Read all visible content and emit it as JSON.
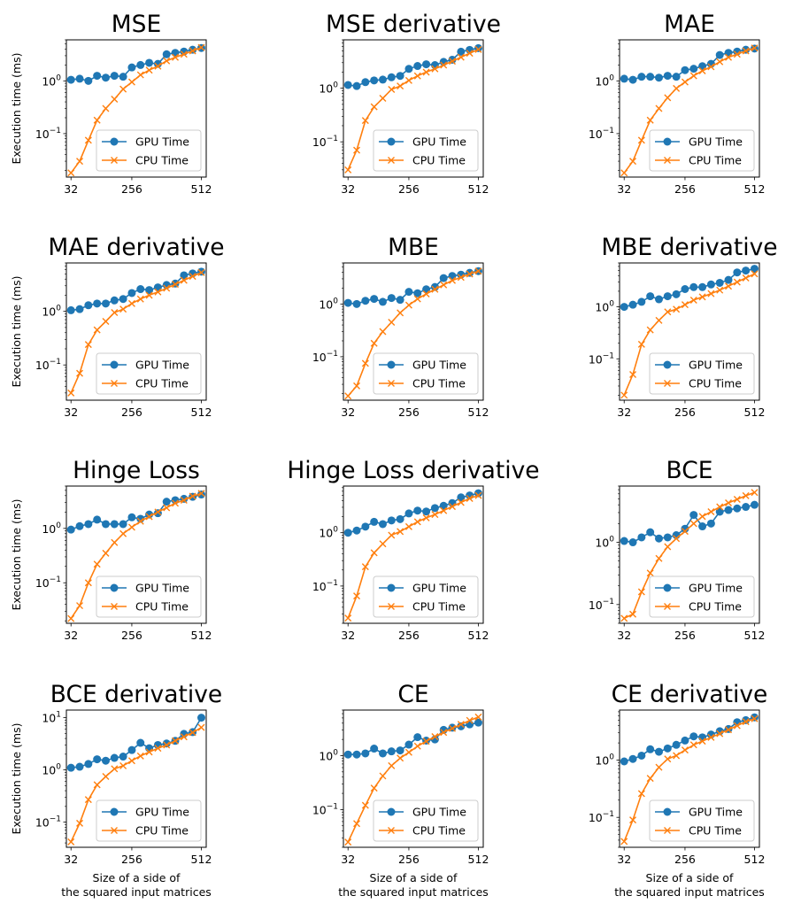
{
  "figure": {
    "ylabel": "Execution time (ms)",
    "xlabel_line1": "Size of a side of",
    "xlabel_line2": "the squared input matrices",
    "x_ticks": [
      32,
      256,
      512
    ],
    "y_tick_labels": {
      "-1": "10^-1",
      "0": "10^0",
      "1": "10^1"
    }
  },
  "colors": {
    "gpu": "#1f77b4",
    "cpu": "#ff7f0e"
  },
  "chart_data": [
    {
      "type": "line",
      "title": "MSE",
      "x": [
        32,
        64,
        96,
        128,
        160,
        192,
        224,
        256,
        288,
        320,
        352,
        384,
        416,
        448,
        480,
        512
      ],
      "yscale": "log",
      "ylim": [
        0.015,
        6
      ],
      "legend": "lower-right",
      "series": [
        {
          "name": "GPU Time",
          "marker": "o",
          "values": [
            1.05,
            1.1,
            1.0,
            1.25,
            1.15,
            1.25,
            1.2,
            1.8,
            2.0,
            2.2,
            2.1,
            3.2,
            3.4,
            3.6,
            3.9,
            4.2
          ]
        },
        {
          "name": "CPU Time",
          "marker": "x",
          "values": [
            0.018,
            0.03,
            0.075,
            0.18,
            0.3,
            0.45,
            0.7,
            0.95,
            1.3,
            1.6,
            1.9,
            2.4,
            2.8,
            3.2,
            3.7,
            4.3
          ]
        }
      ]
    },
    {
      "type": "line",
      "title": "MSE derivative",
      "x": [
        32,
        64,
        96,
        128,
        160,
        192,
        224,
        256,
        288,
        320,
        352,
        384,
        416,
        448,
        480,
        512
      ],
      "yscale": "log",
      "ylim": [
        0.022,
        8
      ],
      "legend": "lower-right",
      "series": [
        {
          "name": "GPU Time",
          "marker": "o",
          "values": [
            1.15,
            1.1,
            1.3,
            1.4,
            1.45,
            1.6,
            1.7,
            2.3,
            2.6,
            2.8,
            2.7,
            3.1,
            3.4,
            4.8,
            5.2,
            5.6
          ]
        },
        {
          "name": "CPU Time",
          "marker": "x",
          "values": [
            0.03,
            0.07,
            0.25,
            0.45,
            0.65,
            0.95,
            1.1,
            1.4,
            1.7,
            2.0,
            2.3,
            2.7,
            3.2,
            3.8,
            4.5,
            5.3
          ]
        }
      ]
    },
    {
      "type": "line",
      "title": "MAE",
      "x": [
        32,
        64,
        96,
        128,
        160,
        192,
        224,
        256,
        288,
        320,
        352,
        384,
        416,
        448,
        480,
        512
      ],
      "yscale": "log",
      "ylim": [
        0.015,
        6
      ],
      "legend": "lower-right",
      "series": [
        {
          "name": "GPU Time",
          "marker": "o",
          "values": [
            1.1,
            1.05,
            1.2,
            1.2,
            1.15,
            1.25,
            1.2,
            1.6,
            1.7,
            1.9,
            2.1,
            3.1,
            3.4,
            3.6,
            3.9,
            4.1
          ]
        },
        {
          "name": "CPU Time",
          "marker": "x",
          "values": [
            0.018,
            0.03,
            0.075,
            0.18,
            0.3,
            0.48,
            0.72,
            0.95,
            1.25,
            1.55,
            1.85,
            2.3,
            2.8,
            3.2,
            3.7,
            4.2
          ]
        }
      ]
    },
    {
      "type": "line",
      "title": "MAE derivative",
      "x": [
        32,
        64,
        96,
        128,
        160,
        192,
        224,
        256,
        288,
        320,
        352,
        384,
        416,
        448,
        480,
        512
      ],
      "yscale": "log",
      "ylim": [
        0.022,
        8
      ],
      "legend": "lower-right",
      "series": [
        {
          "name": "GPU Time",
          "marker": "o",
          "values": [
            1.05,
            1.1,
            1.3,
            1.4,
            1.4,
            1.6,
            1.7,
            2.2,
            2.6,
            2.5,
            2.8,
            3.1,
            3.3,
            4.7,
            5.1,
            5.5
          ]
        },
        {
          "name": "CPU Time",
          "marker": "x",
          "values": [
            0.03,
            0.07,
            0.24,
            0.45,
            0.65,
            0.95,
            1.1,
            1.4,
            1.7,
            2.0,
            2.3,
            2.7,
            3.2,
            3.8,
            4.5,
            5.3
          ]
        }
      ]
    },
    {
      "type": "line",
      "title": "MBE",
      "x": [
        32,
        64,
        96,
        128,
        160,
        192,
        224,
        256,
        288,
        320,
        352,
        384,
        416,
        448,
        480,
        512
      ],
      "yscale": "log",
      "ylim": [
        0.015,
        6
      ],
      "legend": "lower-right",
      "series": [
        {
          "name": "GPU Time",
          "marker": "o",
          "values": [
            1.05,
            1.0,
            1.15,
            1.25,
            1.1,
            1.3,
            1.2,
            1.7,
            1.6,
            1.9,
            2.1,
            3.1,
            3.4,
            3.6,
            3.9,
            4.2
          ]
        },
        {
          "name": "CPU Time",
          "marker": "x",
          "values": [
            0.018,
            0.028,
            0.075,
            0.18,
            0.3,
            0.45,
            0.68,
            0.95,
            1.25,
            1.55,
            1.9,
            2.3,
            2.8,
            3.2,
            3.7,
            4.2
          ]
        }
      ]
    },
    {
      "type": "line",
      "title": "MBE derivative",
      "x": [
        32,
        64,
        96,
        128,
        160,
        192,
        224,
        256,
        288,
        320,
        352,
        384,
        416,
        448,
        480,
        512
      ],
      "yscale": "log",
      "ylim": [
        0.016,
        7
      ],
      "legend": "lower-right",
      "series": [
        {
          "name": "GPU Time",
          "marker": "o",
          "values": [
            1.0,
            1.1,
            1.25,
            1.6,
            1.4,
            1.6,
            1.75,
            2.2,
            2.4,
            2.4,
            2.7,
            2.9,
            3.3,
            4.6,
            5.0,
            5.4
          ]
        },
        {
          "name": "CPU Time",
          "marker": "x",
          "values": [
            0.02,
            0.05,
            0.19,
            0.36,
            0.55,
            0.8,
            0.9,
            1.1,
            1.35,
            1.55,
            1.8,
            2.1,
            2.5,
            3.0,
            3.6,
            4.3
          ]
        }
      ]
    },
    {
      "type": "line",
      "title": "Hinge Loss",
      "x": [
        32,
        64,
        96,
        128,
        160,
        192,
        224,
        256,
        288,
        320,
        352,
        384,
        416,
        448,
        480,
        512
      ],
      "yscale": "log",
      "ylim": [
        0.018,
        6
      ],
      "legend": "lower-right",
      "series": [
        {
          "name": "GPU Time",
          "marker": "o",
          "values": [
            0.95,
            1.1,
            1.2,
            1.45,
            1.2,
            1.2,
            1.2,
            1.6,
            1.5,
            1.8,
            1.9,
            3.1,
            3.3,
            3.5,
            3.8,
            4.2
          ]
        },
        {
          "name": "CPU Time",
          "marker": "x",
          "values": [
            0.022,
            0.038,
            0.1,
            0.22,
            0.35,
            0.55,
            0.8,
            1.05,
            1.35,
            1.65,
            2.0,
            2.4,
            2.9,
            3.3,
            3.9,
            4.4
          ]
        }
      ]
    },
    {
      "type": "line",
      "title": "Hinge Loss derivative",
      "x": [
        32,
        64,
        96,
        128,
        160,
        192,
        224,
        256,
        288,
        320,
        352,
        384,
        416,
        448,
        480,
        512
      ],
      "yscale": "log",
      "ylim": [
        0.02,
        7.5
      ],
      "legend": "lower-right",
      "series": [
        {
          "name": "GPU Time",
          "marker": "o",
          "values": [
            1.0,
            1.1,
            1.3,
            1.6,
            1.45,
            1.7,
            1.8,
            2.3,
            2.6,
            2.5,
            2.9,
            3.2,
            3.6,
            4.6,
            5.0,
            5.5
          ]
        },
        {
          "name": "CPU Time",
          "marker": "x",
          "values": [
            0.025,
            0.065,
            0.23,
            0.42,
            0.62,
            0.9,
            1.05,
            1.3,
            1.6,
            1.9,
            2.2,
            2.6,
            3.1,
            3.7,
            4.4,
            5.0
          ]
        }
      ]
    },
    {
      "type": "line",
      "title": "BCE",
      "x": [
        32,
        64,
        96,
        128,
        160,
        192,
        224,
        256,
        288,
        320,
        352,
        384,
        416,
        448,
        480,
        512
      ],
      "yscale": "log",
      "ylim": [
        0.05,
        8
      ],
      "legend": "lower-right",
      "series": [
        {
          "name": "GPU Time",
          "marker": "o",
          "values": [
            1.05,
            1.0,
            1.2,
            1.45,
            1.15,
            1.2,
            1.3,
            1.65,
            2.75,
            1.8,
            2.0,
            3.1,
            3.3,
            3.5,
            3.7,
            4.0
          ]
        },
        {
          "name": "CPU Time",
          "marker": "x",
          "values": [
            0.06,
            0.07,
            0.16,
            0.32,
            0.55,
            0.85,
            1.15,
            1.5,
            2.0,
            2.6,
            3.1,
            3.7,
            4.3,
            4.9,
            5.6,
            6.3
          ]
        }
      ]
    },
    {
      "type": "line",
      "title": "BCE derivative",
      "x": [
        32,
        64,
        96,
        128,
        160,
        192,
        224,
        256,
        288,
        320,
        352,
        384,
        416,
        448,
        480,
        512
      ],
      "yscale": "log",
      "ylim": [
        0.033,
        14
      ],
      "legend": "lower-right",
      "series": [
        {
          "name": "GPU Time",
          "marker": "o",
          "values": [
            1.1,
            1.15,
            1.3,
            1.6,
            1.5,
            1.7,
            1.8,
            2.4,
            3.3,
            2.6,
            3.0,
            3.2,
            3.6,
            4.9,
            5.3,
            10.0
          ]
        },
        {
          "name": "CPU Time",
          "marker": "x",
          "values": [
            0.042,
            0.095,
            0.27,
            0.52,
            0.75,
            1.05,
            1.2,
            1.5,
            1.85,
            2.2,
            2.6,
            3.0,
            3.6,
            4.3,
            5.2,
            6.5
          ]
        }
      ]
    },
    {
      "type": "line",
      "title": "CE",
      "x": [
        32,
        64,
        96,
        128,
        160,
        192,
        224,
        256,
        288,
        320,
        352,
        384,
        416,
        448,
        480,
        512
      ],
      "yscale": "log",
      "ylim": [
        0.02,
        7
      ],
      "legend": "lower-right",
      "series": [
        {
          "name": "GPU Time",
          "marker": "o",
          "values": [
            1.05,
            1.05,
            1.1,
            1.35,
            1.1,
            1.2,
            1.25,
            1.6,
            2.2,
            1.9,
            2.0,
            3.0,
            3.3,
            3.5,
            3.8,
            4.1
          ]
        },
        {
          "name": "CPU Time",
          "marker": "x",
          "values": [
            0.025,
            0.055,
            0.12,
            0.25,
            0.42,
            0.65,
            0.9,
            1.15,
            1.5,
            1.85,
            2.25,
            2.7,
            3.2,
            3.8,
            4.5,
            5.2
          ]
        }
      ]
    },
    {
      "type": "line",
      "title": "CE derivative",
      "x": [
        32,
        64,
        96,
        128,
        160,
        192,
        224,
        256,
        288,
        320,
        352,
        384,
        416,
        448,
        480,
        512
      ],
      "yscale": "log",
      "ylim": [
        0.03,
        7.5
      ],
      "legend": "lower-right",
      "series": [
        {
          "name": "GPU Time",
          "marker": "o",
          "values": [
            0.95,
            1.05,
            1.2,
            1.55,
            1.4,
            1.6,
            1.85,
            2.2,
            2.6,
            2.5,
            2.8,
            3.2,
            3.5,
            4.6,
            5.0,
            5.6
          ]
        },
        {
          "name": "CPU Time",
          "marker": "x",
          "values": [
            0.038,
            0.09,
            0.26,
            0.48,
            0.75,
            1.05,
            1.2,
            1.5,
            1.85,
            2.15,
            2.5,
            2.9,
            3.4,
            4.0,
            4.7,
            5.3
          ]
        }
      ]
    }
  ]
}
